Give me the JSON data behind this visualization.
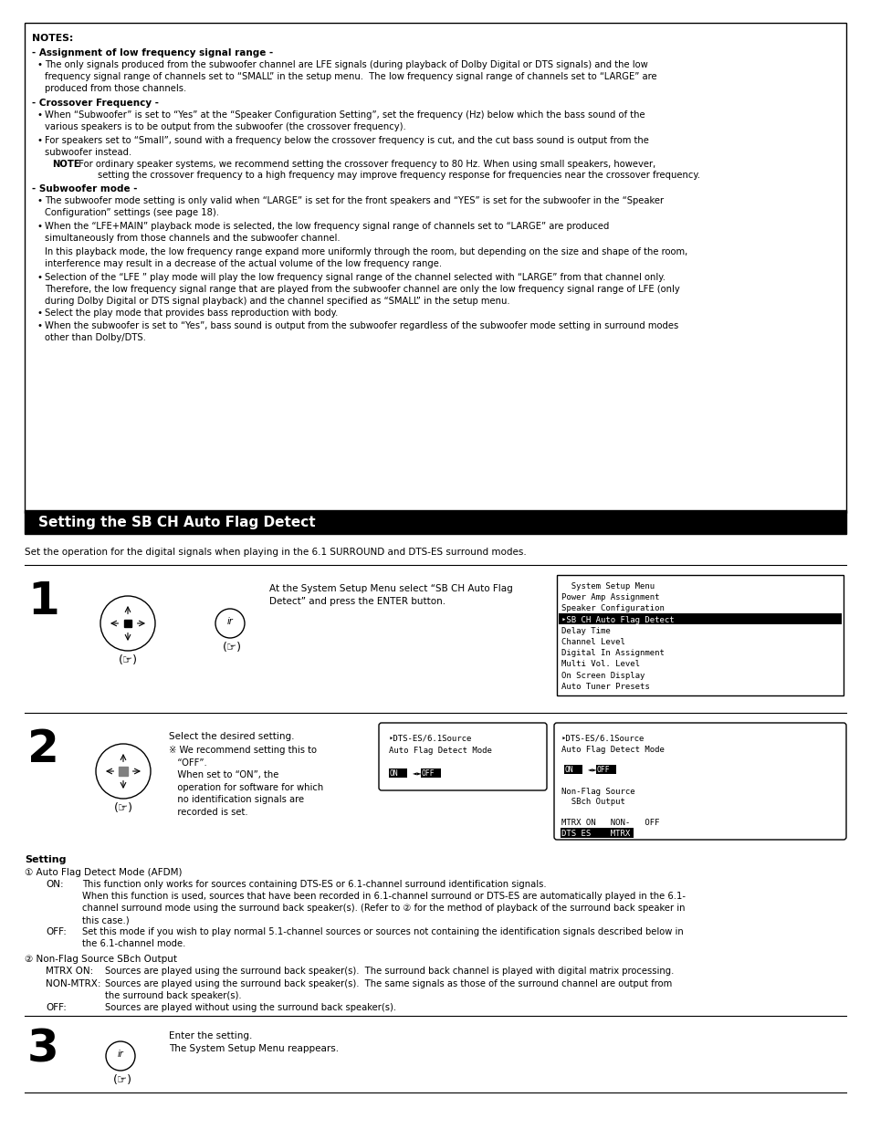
{
  "bg_color": "#ffffff",
  "notes_title": "NOTES:",
  "sec1_header": "- Assignment of low frequency signal range -",
  "sec1_b1": "The only signals produced from the subwoofer channel are LFE signals (during playback of Dolby Digital or DTS signals) and the low\nfrequency signal range of channels set to “SMALL” in the setup menu.  The low frequency signal range of channels set to “LARGE” are\nproduced from those channels.",
  "sec2_header": "- Crossover Frequency -",
  "sec2_b1": "When “Subwoofer” is set to “Yes” at the “Speaker Configuration Setting”, set the frequency (Hz) below which the bass sound of the\nvarious speakers is to be output from the subwoofer (the crossover frequency).",
  "sec2_b2a": "For speakers set to “Small”, sound with a frequency below the crossover frequency is cut, and the cut bass sound is output from the\nsubwoofer instead.",
  "sec2_note1": ":For ordinary speaker systems, we recommend setting the crossover frequency to 80 Hz. When using small speakers, however,",
  "sec2_note2": "setting the crossover frequency to a high frequency may improve frequency response for frequencies near the crossover frequency.",
  "sec3_header": "- Subwoofer mode -",
  "sec3_b1": "The subwoofer mode setting is only valid when “LARGE” is set for the front speakers and “YES” is set for the subwoofer in the “Speaker\nConfiguration” settings (see page 18).",
  "sec3_b2a": "When the “LFE+MAIN” playback mode is selected, the low frequency signal range of channels set to “LARGE” are produced\nsimultaneously from those channels and the subwoofer channel.",
  "sec3_b2b": "In this playback mode, the low frequency range expand more uniformly through the room, but depending on the size and shape of the room,\ninterference may result in a decrease of the actual volume of the low frequency range.",
  "sec3_b3": "Selection of the “LFE ” play mode will play the low frequency signal range of the channel selected with “LARGE” from that channel only.\nTherefore, the low frequency signal range that are played from the subwoofer channel are only the low frequency signal range of LFE (only\nduring Dolby Digital or DTS signal playback) and the channel specified as “SMALL” in the setup menu.",
  "sec3_b4": "Select the play mode that provides bass reproduction with body.",
  "sec3_b5": "When the subwoofer is set to “Yes”, bass sound is output from the subwoofer regardless of the subwoofer mode setting in surround modes\nother than Dolby/DTS.",
  "section_title": "Setting the SB CH Auto Flag Detect",
  "section_subtitle": "Set the operation for the digital signals when playing in the 6.1 SURROUND and DTS-ES surround modes.",
  "step1_text": "At the System Setup Menu select “SB CH Auto Flag\nDetect” and press the ENTER button.",
  "step1_display": [
    "  System Setup Menu",
    "Power Amp Assignment",
    "Speaker Configuration",
    "‣SB CH Auto Flag Detect",
    "Delay Time",
    "Channel Level",
    "Digital In Assignment",
    "Multi Vol. Level",
    "On Screen Display",
    "Auto Tuner Presets"
  ],
  "step2_main": "Select the desired setting.",
  "step2_note": "※ We recommend setting this to\n   “OFF”.\n   When set to “ON”, the\n   operation for software for which\n   no identification signals are\n   recorded is set.",
  "step3_text": "Enter the setting.\nThe System Setup Menu reappears.",
  "setting_title": "Setting",
  "s1_label": "① Auto Flag Detect Mode (AFDM)",
  "s1_on_key": "ON:",
  "s1_on_val": "This function only works for sources containing DTS-ES or 6.1-channel surround identification signals.\nWhen this function is used, sources that have been recorded in 6.1-channel surround or DTS-ES are automatically played in the 6.1-\nchannel surround mode using the surround back speaker(s). (Refer to ② for the method of playback of the surround back speaker in\nthis case.)",
  "s1_off_key": "OFF:",
  "s1_off_val": "Set this mode if you wish to play normal 5.1-channel sources or sources not containing the identification signals described below in\nthe 6.1-channel mode.",
  "s2_label": "② Non-Flag Source SBch Output",
  "s2_mtrxon_key": "MTRX ON:",
  "s2_mtrxon_val": "Sources are played using the surround back speaker(s).  The surround back channel is played with digital matrix processing.",
  "s2_nonmtrx_key": "NON-MTRX:",
  "s2_nonmtrx_val": "Sources are played using the surround back speaker(s).  The same signals as those of the surround channel are output from\nthe surround back speaker(s).",
  "s2_off_key": "OFF:",
  "s2_off_val": "Sources are played without using the surround back speaker(s)."
}
